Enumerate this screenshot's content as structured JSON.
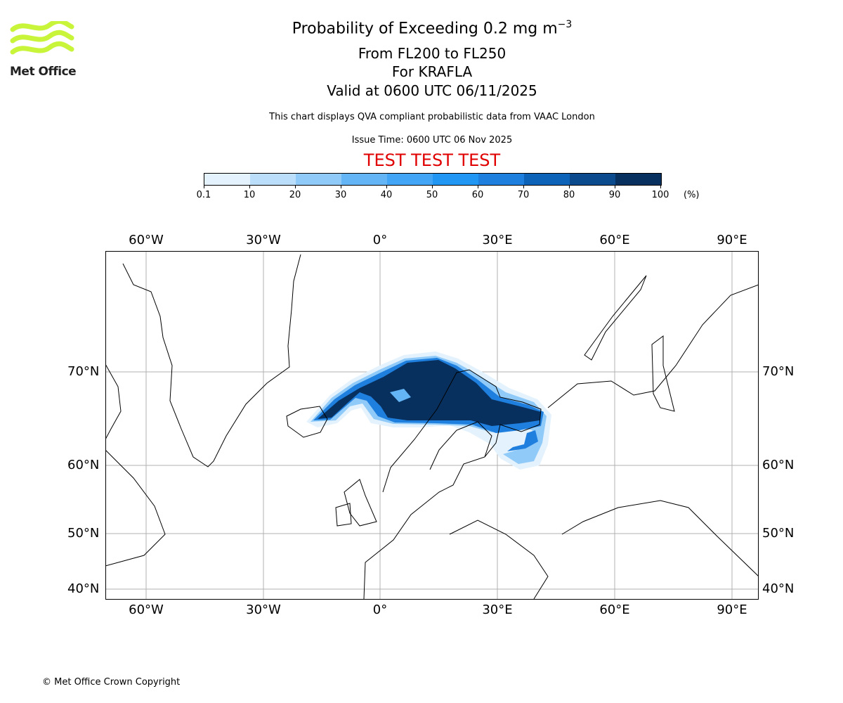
{
  "header": {
    "title": "Probability of Exceeding 0.2 mg m",
    "title_exp": "−3",
    "level": "From FL200 to FL250",
    "volcano": "For KRAFLA",
    "valid": "Valid at 0600 UTC 06/11/2025",
    "description": "This chart displays QVA compliant probabilistic data from VAAC London",
    "issue_time": "Issue Time: 0600 UTC 06 Nov 2025",
    "test_banner": "TEST TEST TEST"
  },
  "logo": {
    "text": "Met Office"
  },
  "colorbar": {
    "ticks": [
      "0.1",
      "10",
      "20",
      "30",
      "40",
      "50",
      "60",
      "70",
      "80",
      "90",
      "100"
    ],
    "unit": "(%)",
    "colors": [
      "#e3f2fd",
      "#bbdefb",
      "#90caf9",
      "#64b5f6",
      "#42a5f5",
      "#2196f3",
      "#1e7fde",
      "#0d63b8",
      "#0b4a8c",
      "#08305e"
    ]
  },
  "map": {
    "lon_labels": [
      "60°W",
      "30°W",
      "0°",
      "30°E",
      "60°E",
      "90°E"
    ],
    "lat_labels": [
      "70°N",
      "60°N",
      "50°N",
      "40°N"
    ]
  },
  "footer": {
    "copyright": "© Met Office Crown Copyright"
  }
}
